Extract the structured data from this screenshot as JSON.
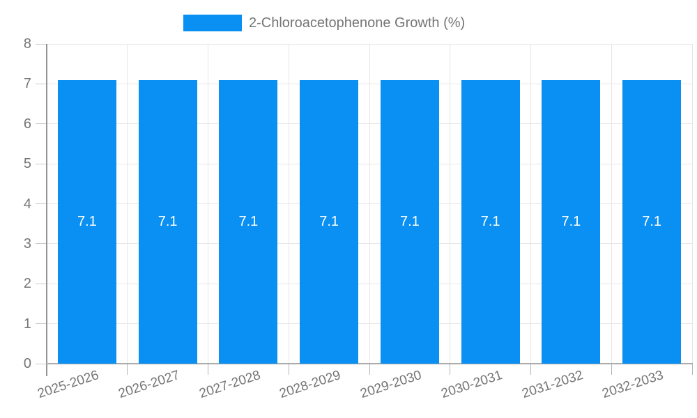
{
  "legend": {
    "label": "2-Chloroacetophenone Growth (%)"
  },
  "chart_data": {
    "type": "bar",
    "title": "",
    "categories": [
      "2025-2026",
      "2026-2027",
      "2027-2028",
      "2028-2029",
      "2029-2030",
      "2030-2031",
      "2031-2032",
      "2032-2033"
    ],
    "series": [
      {
        "name": "2-Chloroacetophenone Growth (%)",
        "values": [
          7.1,
          7.1,
          7.1,
          7.1,
          7.1,
          7.1,
          7.1,
          7.1
        ]
      }
    ],
    "value_labels": [
      "7.1",
      "7.1",
      "7.1",
      "7.1",
      "7.1",
      "7.1",
      "7.1",
      "7.1"
    ],
    "ylim": [
      0,
      8
    ],
    "yticks": [
      0,
      1,
      2,
      3,
      4,
      5,
      6,
      7,
      8
    ],
    "grid": true,
    "legend_position": "top",
    "colors": {
      "bar": "#0a8ff2",
      "axis_text": "#757575",
      "grid": "#e6e6e6",
      "axis_line": "#a3a3a3",
      "value_label": "#ffffff"
    }
  }
}
